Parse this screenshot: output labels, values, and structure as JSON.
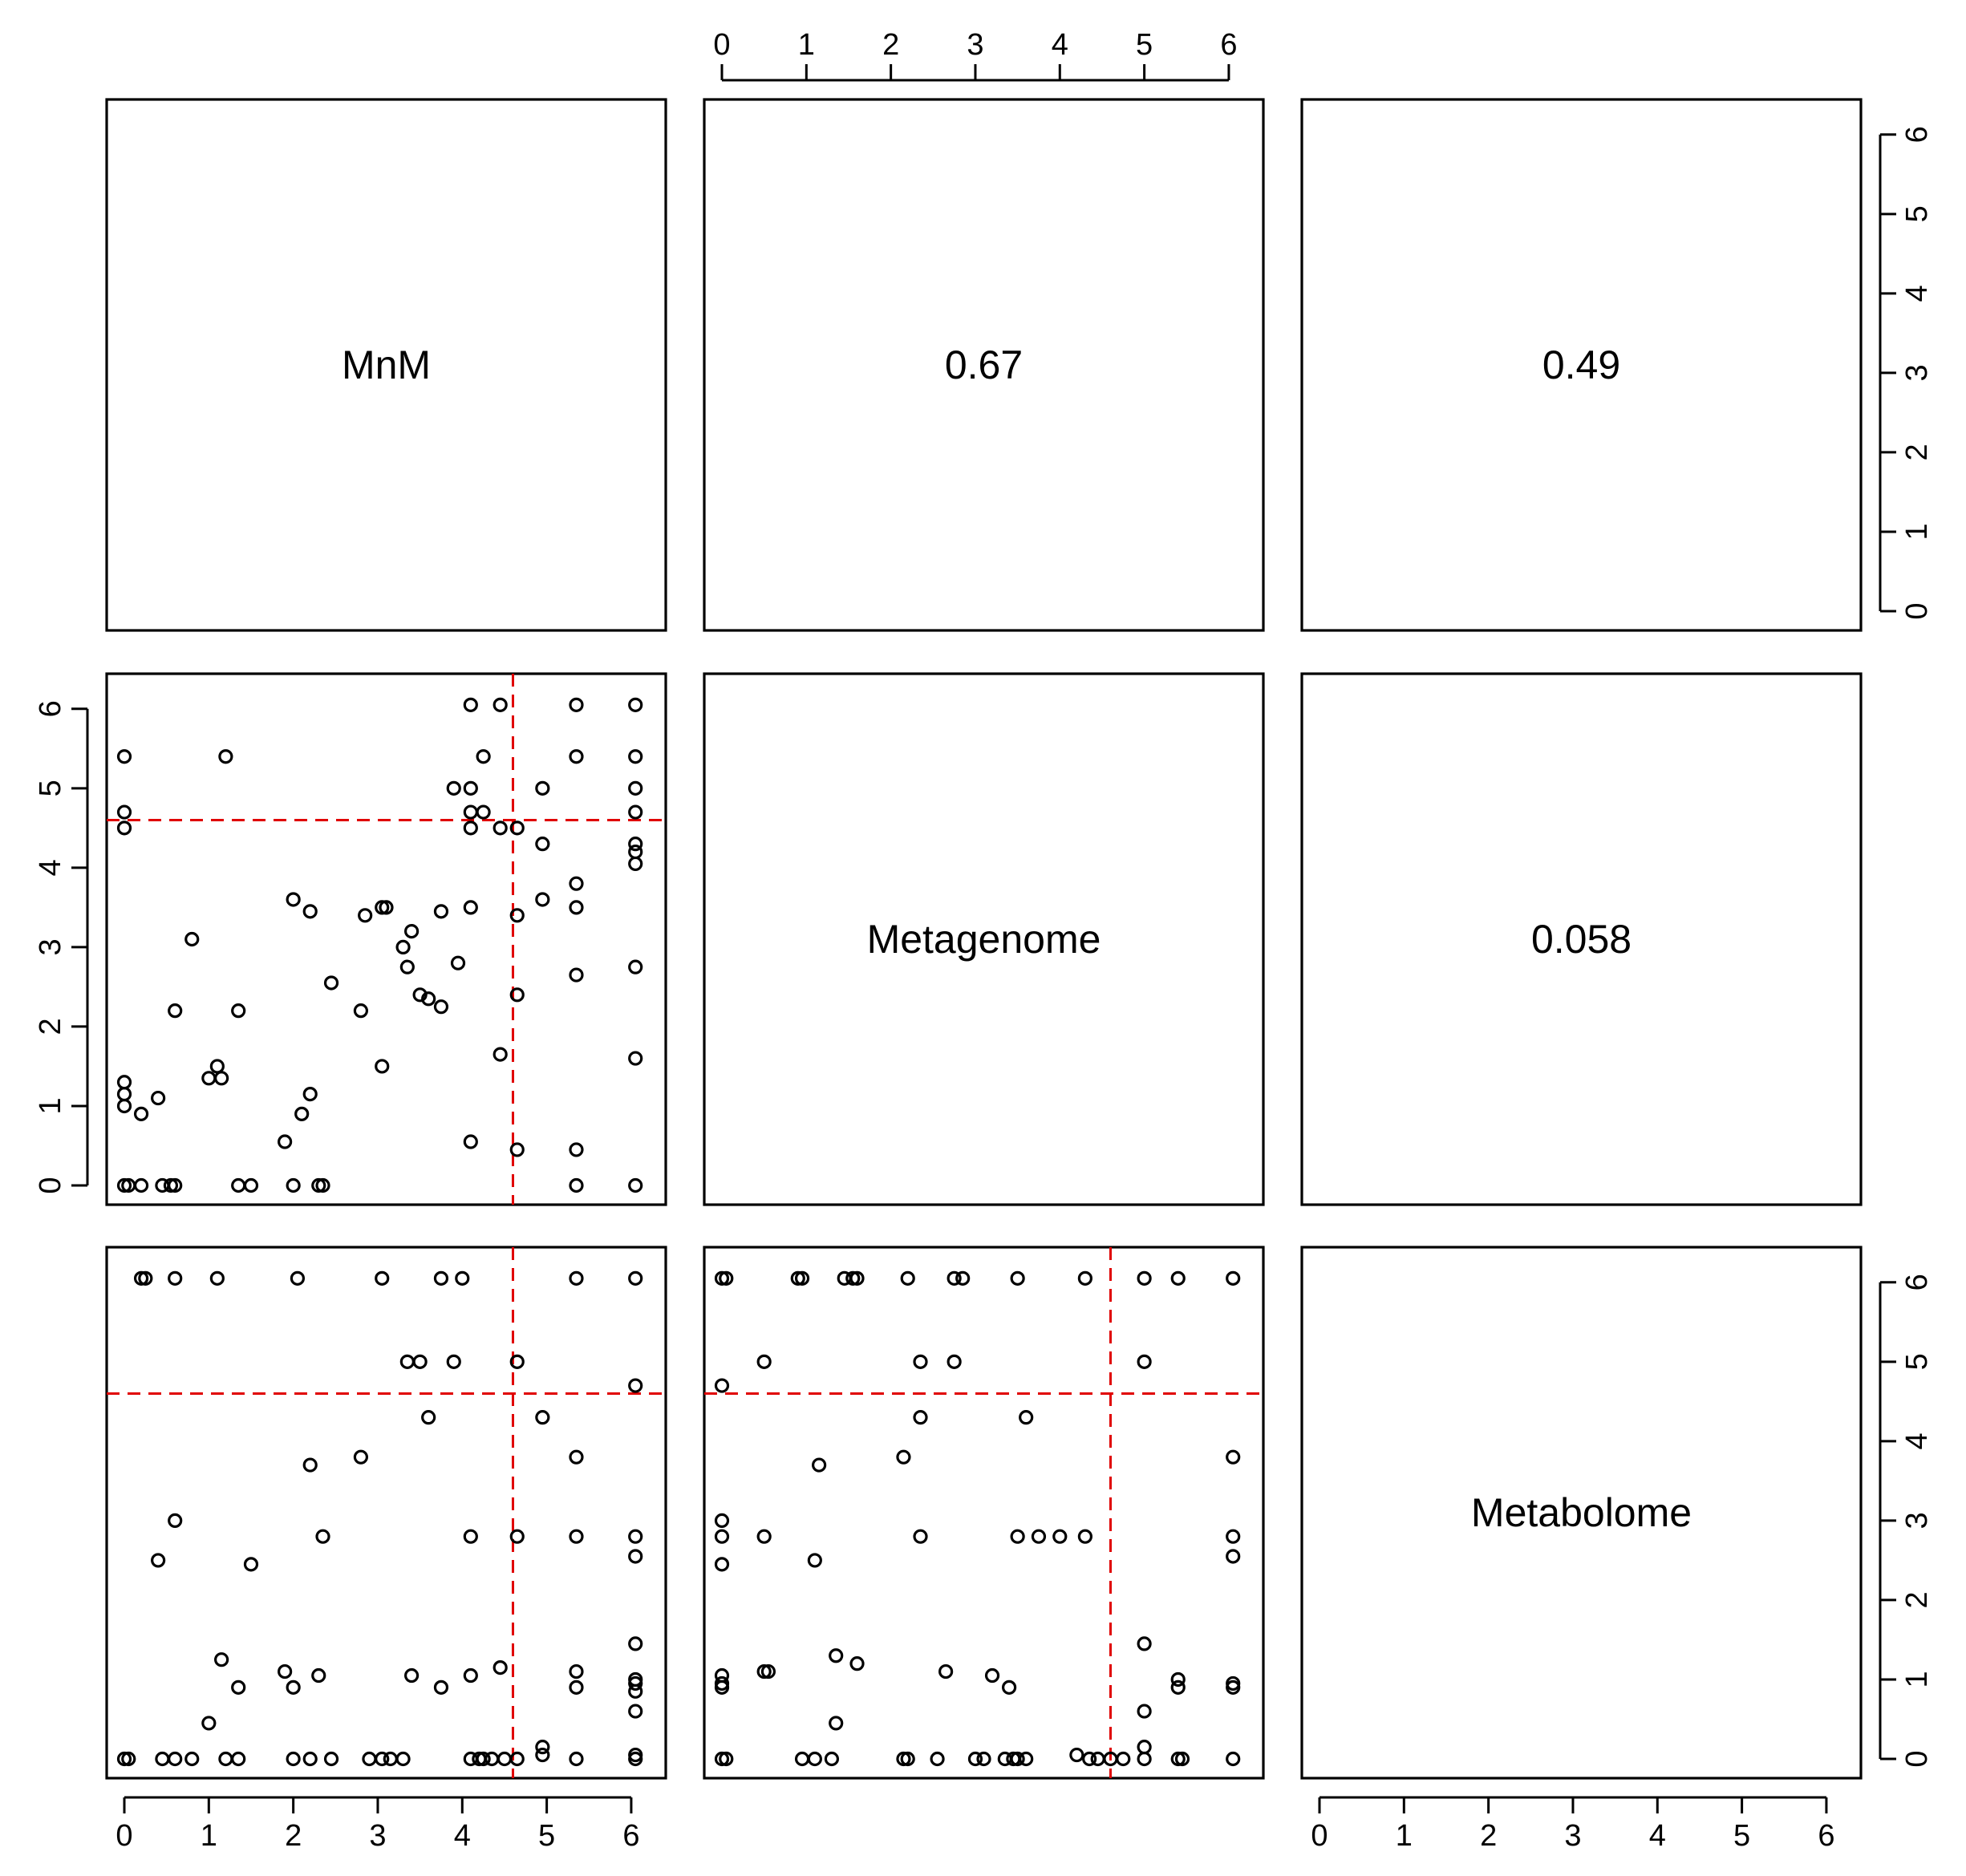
{
  "chart_data": {
    "type": "scatter",
    "layout": "pairs-matrix",
    "variables": [
      "MnM",
      "Metagenome",
      "Metabolome"
    ],
    "axis_range": [
      0,
      6.2
    ],
    "ticks": [
      "0",
      "1",
      "2",
      "3",
      "4",
      "5",
      "6"
    ],
    "threshold": 4.6,
    "threshold_color": "#e00000",
    "correlations": [
      {
        "row": 0,
        "col": 1,
        "text": "0.67"
      },
      {
        "row": 0,
        "col": 2,
        "text": "0.49"
      },
      {
        "row": 1,
        "col": 2,
        "text": "0.058"
      }
    ],
    "scatter_panels": [
      {
        "row": 1,
        "col": 0,
        "x_var": "MnM",
        "y_var": "Metagenome",
        "points": [
          [
            4.1,
            6.05
          ],
          [
            4.45,
            6.05
          ],
          [
            5.35,
            6.05
          ],
          [
            6.05,
            6.05
          ],
          [
            0.0,
            5.4
          ],
          [
            1.2,
            5.4
          ],
          [
            4.25,
            5.4
          ],
          [
            5.35,
            5.4
          ],
          [
            6.05,
            5.4
          ],
          [
            3.9,
            5.0
          ],
          [
            4.1,
            5.0
          ],
          [
            4.95,
            5.0
          ],
          [
            6.05,
            5.0
          ],
          [
            0.0,
            4.7
          ],
          [
            4.1,
            4.7
          ],
          [
            4.25,
            4.7
          ],
          [
            6.05,
            4.7
          ],
          [
            0.0,
            4.5
          ],
          [
            4.1,
            4.5
          ],
          [
            4.45,
            4.5
          ],
          [
            4.65,
            4.5
          ],
          [
            4.95,
            4.3
          ],
          [
            6.05,
            4.3
          ],
          [
            6.05,
            4.2
          ],
          [
            6.05,
            4.05
          ],
          [
            5.35,
            3.8
          ],
          [
            2.0,
            3.6
          ],
          [
            4.95,
            3.6
          ],
          [
            2.2,
            3.45
          ],
          [
            3.05,
            3.5
          ],
          [
            3.1,
            3.5
          ],
          [
            3.75,
            3.45
          ],
          [
            4.1,
            3.5
          ],
          [
            5.35,
            3.5
          ],
          [
            2.85,
            3.4
          ],
          [
            4.65,
            3.4
          ],
          [
            3.4,
            3.2
          ],
          [
            0.8,
            3.1
          ],
          [
            3.3,
            3.0
          ],
          [
            3.95,
            2.8
          ],
          [
            3.35,
            2.75
          ],
          [
            6.05,
            2.75
          ],
          [
            5.35,
            2.65
          ],
          [
            2.45,
            2.55
          ],
          [
            3.5,
            2.4
          ],
          [
            3.6,
            2.35
          ],
          [
            4.65,
            2.4
          ],
          [
            3.75,
            2.25
          ],
          [
            0.6,
            2.2
          ],
          [
            1.35,
            2.2
          ],
          [
            2.8,
            2.2
          ],
          [
            4.45,
            1.65
          ],
          [
            6.05,
            1.6
          ],
          [
            1.1,
            1.5
          ],
          [
            3.05,
            1.5
          ],
          [
            1.0,
            1.35
          ],
          [
            1.15,
            1.35
          ],
          [
            0.0,
            1.3
          ],
          [
            0.0,
            1.15
          ],
          [
            2.2,
            1.15
          ],
          [
            0.4,
            1.1
          ],
          [
            0.0,
            1.0
          ],
          [
            0.2,
            0.9
          ],
          [
            2.1,
            0.9
          ],
          [
            1.9,
            0.55
          ],
          [
            4.1,
            0.55
          ],
          [
            4.65,
            0.45
          ],
          [
            5.35,
            0.45
          ],
          [
            0.0,
            0.0
          ],
          [
            0.05,
            0.0
          ],
          [
            0.2,
            0.0
          ],
          [
            0.45,
            0.0
          ],
          [
            0.55,
            0.0
          ],
          [
            0.6,
            0.0
          ],
          [
            1.35,
            0.0
          ],
          [
            1.5,
            0.0
          ],
          [
            2.0,
            0.0
          ],
          [
            2.3,
            0.0
          ],
          [
            2.35,
            0.0
          ],
          [
            5.35,
            0.0
          ],
          [
            6.05,
            0.0
          ]
        ]
      },
      {
        "row": 2,
        "col": 0,
        "x_var": "MnM",
        "y_var": "Metabolome",
        "points": [
          [
            0.2,
            6.05
          ],
          [
            0.25,
            6.05
          ],
          [
            0.6,
            6.05
          ],
          [
            1.1,
            6.05
          ],
          [
            2.05,
            6.05
          ],
          [
            3.05,
            6.05
          ],
          [
            3.75,
            6.05
          ],
          [
            4.0,
            6.05
          ],
          [
            5.35,
            6.05
          ],
          [
            6.05,
            6.05
          ],
          [
            3.35,
            5.0
          ],
          [
            3.5,
            5.0
          ],
          [
            3.9,
            5.0
          ],
          [
            4.65,
            5.0
          ],
          [
            6.05,
            4.7
          ],
          [
            3.6,
            4.3
          ],
          [
            4.95,
            4.3
          ],
          [
            2.8,
            3.8
          ],
          [
            5.35,
            3.8
          ],
          [
            2.2,
            3.7
          ],
          [
            0.6,
            3.0
          ],
          [
            2.35,
            2.8
          ],
          [
            4.1,
            2.8
          ],
          [
            4.65,
            2.8
          ],
          [
            5.35,
            2.8
          ],
          [
            6.05,
            2.8
          ],
          [
            6.05,
            2.55
          ],
          [
            0.4,
            2.5
          ],
          [
            1.5,
            2.45
          ],
          [
            6.05,
            1.45
          ],
          [
            1.15,
            1.25
          ],
          [
            4.45,
            1.15
          ],
          [
            1.9,
            1.1
          ],
          [
            2.3,
            1.05
          ],
          [
            3.4,
            1.05
          ],
          [
            4.1,
            1.05
          ],
          [
            5.35,
            1.1
          ],
          [
            6.05,
            1.0
          ],
          [
            1.35,
            0.9
          ],
          [
            2.0,
            0.9
          ],
          [
            3.75,
            0.9
          ],
          [
            5.35,
            0.9
          ],
          [
            6.05,
            0.95
          ],
          [
            6.05,
            0.85
          ],
          [
            6.05,
            0.6
          ],
          [
            1.0,
            0.45
          ],
          [
            4.95,
            0.15
          ],
          [
            4.95,
            0.05
          ],
          [
            6.05,
            0.05
          ],
          [
            0.0,
            0.0
          ],
          [
            0.05,
            0.0
          ],
          [
            0.45,
            0.0
          ],
          [
            0.6,
            0.0
          ],
          [
            0.8,
            0.0
          ],
          [
            1.2,
            0.0
          ],
          [
            1.35,
            0.0
          ],
          [
            2.0,
            0.0
          ],
          [
            2.2,
            0.0
          ],
          [
            2.45,
            0.0
          ],
          [
            2.9,
            0.0
          ],
          [
            3.05,
            0.0
          ],
          [
            3.15,
            0.0
          ],
          [
            3.3,
            0.0
          ],
          [
            4.1,
            0.0
          ],
          [
            4.2,
            0.0
          ],
          [
            4.25,
            0.0
          ],
          [
            4.35,
            0.0
          ],
          [
            4.5,
            0.0
          ],
          [
            4.65,
            0.0
          ],
          [
            5.35,
            0.0
          ],
          [
            6.05,
            0.0
          ]
        ]
      },
      {
        "row": 2,
        "col": 1,
        "x_var": "Metagenome",
        "y_var": "Metabolome",
        "points": [
          [
            0.0,
            6.05
          ],
          [
            0.05,
            6.05
          ],
          [
            0.9,
            6.05
          ],
          [
            0.95,
            6.05
          ],
          [
            1.45,
            6.05
          ],
          [
            1.55,
            6.05
          ],
          [
            1.6,
            6.05
          ],
          [
            2.2,
            6.05
          ],
          [
            2.75,
            6.05
          ],
          [
            2.85,
            6.05
          ],
          [
            3.5,
            6.05
          ],
          [
            4.3,
            6.05
          ],
          [
            5.0,
            6.05
          ],
          [
            5.4,
            6.05
          ],
          [
            6.05,
            6.05
          ],
          [
            0.5,
            5.0
          ],
          [
            2.35,
            5.0
          ],
          [
            2.75,
            5.0
          ],
          [
            5.0,
            5.0
          ],
          [
            0.0,
            4.7
          ],
          [
            2.35,
            4.3
          ],
          [
            3.6,
            4.3
          ],
          [
            1.15,
            3.7
          ],
          [
            2.15,
            3.8
          ],
          [
            6.05,
            3.8
          ],
          [
            0.0,
            3.0
          ],
          [
            0.0,
            2.8
          ],
          [
            0.5,
            2.8
          ],
          [
            2.35,
            2.8
          ],
          [
            3.5,
            2.8
          ],
          [
            3.75,
            2.8
          ],
          [
            4.0,
            2.8
          ],
          [
            4.3,
            2.8
          ],
          [
            6.05,
            2.8
          ],
          [
            6.05,
            2.55
          ],
          [
            1.1,
            2.5
          ],
          [
            0.0,
            2.45
          ],
          [
            5.0,
            1.45
          ],
          [
            1.35,
            1.3
          ],
          [
            1.6,
            1.2
          ],
          [
            0.5,
            1.1
          ],
          [
            0.55,
            1.1
          ],
          [
            2.65,
            1.1
          ],
          [
            3.2,
            1.05
          ],
          [
            0.0,
            1.05
          ],
          [
            0.0,
            0.95
          ],
          [
            0.0,
            0.9
          ],
          [
            3.4,
            0.9
          ],
          [
            5.4,
            1.0
          ],
          [
            5.4,
            0.9
          ],
          [
            6.05,
            0.95
          ],
          [
            6.05,
            0.9
          ],
          [
            5.0,
            0.6
          ],
          [
            1.35,
            0.45
          ],
          [
            5.0,
            0.15
          ],
          [
            4.2,
            0.05
          ],
          [
            0.0,
            0.0
          ],
          [
            0.05,
            0.0
          ],
          [
            0.95,
            0.0
          ],
          [
            1.1,
            0.0
          ],
          [
            1.3,
            0.0
          ],
          [
            2.15,
            0.0
          ],
          [
            2.2,
            0.0
          ],
          [
            2.55,
            0.0
          ],
          [
            3.0,
            0.0
          ],
          [
            3.1,
            0.0
          ],
          [
            3.35,
            0.0
          ],
          [
            3.45,
            0.0
          ],
          [
            3.5,
            0.0
          ],
          [
            3.6,
            0.0
          ],
          [
            4.35,
            0.0
          ],
          [
            4.45,
            0.0
          ],
          [
            4.6,
            0.0
          ],
          [
            4.75,
            0.0
          ],
          [
            5.0,
            0.0
          ],
          [
            5.4,
            0.0
          ],
          [
            5.45,
            0.0
          ],
          [
            6.05,
            0.0
          ]
        ]
      }
    ]
  }
}
